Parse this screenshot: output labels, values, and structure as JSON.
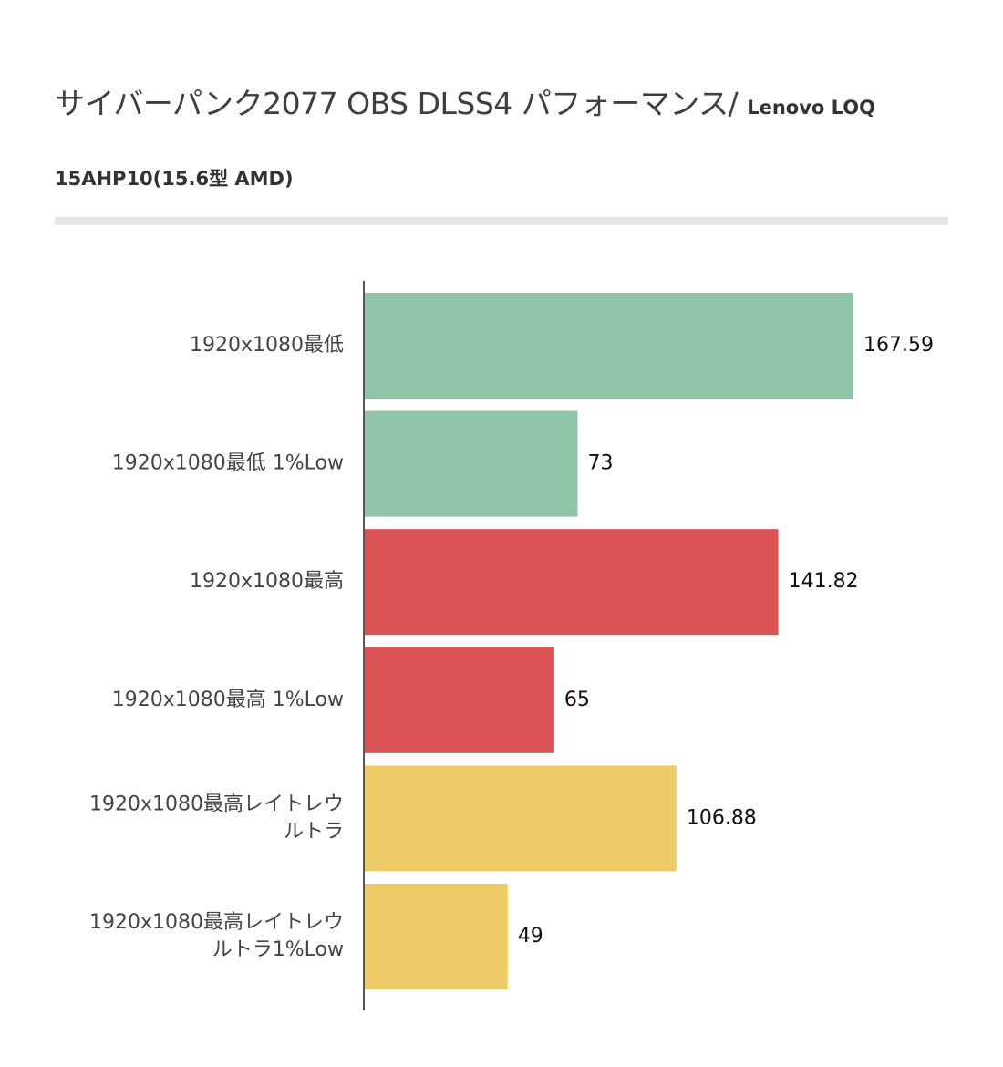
{
  "header": {
    "title_main": "サイバーパンク2077 OBS DLSS4 パフォーマンス/ ",
    "title_suffix": "Lenovo LOQ",
    "subtitle": "15AHP10(15.6型 AMD)"
  },
  "chart_data": {
    "type": "bar",
    "orientation": "horizontal",
    "title": "サイバーパンク2077 OBS DLSS4 パフォーマンス/ Lenovo LOQ 15AHP10(15.6型 AMD)",
    "categories": [
      [
        "1920x1080最低"
      ],
      [
        "1920x1080最低 1%Low"
      ],
      [
        "1920x1080最高"
      ],
      [
        "1920x1080最高 1%Low"
      ],
      [
        "1920x1080最高レイトレウ",
        "ルトラ"
      ],
      [
        "1920x1080最高レイトレウ",
        "ルトラ1%Low"
      ]
    ],
    "values": [
      167.59,
      73,
      141.82,
      65,
      106.88,
      49
    ],
    "value_labels": [
      "167.59",
      "73",
      "141.82",
      "65",
      "106.88",
      "49"
    ],
    "colors": [
      "#8fc4a8",
      "#8fc4a8",
      "#dc5356",
      "#dc5356",
      "#eecb69",
      "#eecb69"
    ],
    "xlim": [
      0,
      175
    ],
    "grid": false,
    "legend": "none"
  }
}
